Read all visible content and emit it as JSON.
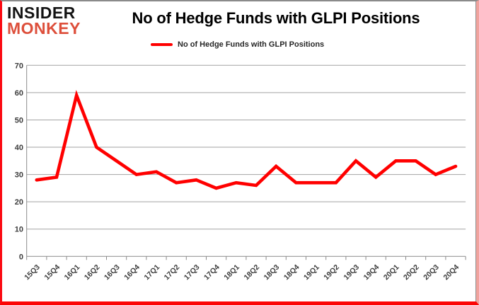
{
  "brand": {
    "line1": "INSIDER",
    "line2": "MONKEY"
  },
  "title": "No of Hedge Funds with GLPI Positions",
  "legend": {
    "label": "No of Hedge Funds with GLPI Positions"
  },
  "colors": {
    "series": "#ff0000",
    "brand_black": "#131313",
    "brand_red": "#dd4f3b",
    "grid": "#a3a3a3",
    "axis": "#8a8a8a",
    "tick_text": "#3c3c3c"
  },
  "chart_data": {
    "type": "line",
    "title": "No of Hedge Funds with GLPI Positions",
    "categories": [
      "15Q3",
      "15Q4",
      "16Q1",
      "16Q2",
      "16Q3",
      "16Q4",
      "17Q1",
      "17Q2",
      "17Q3",
      "17Q4",
      "18Q1",
      "18Q2",
      "18Q3",
      "18Q4",
      "19Q1",
      "19Q2",
      "19Q3",
      "19Q4",
      "20Q1",
      "20Q2",
      "20Q3",
      "20Q4"
    ],
    "series": [
      {
        "name": "No of Hedge Funds with GLPI Positions",
        "color": "#ff0000",
        "values": [
          28,
          29,
          59,
          40,
          35,
          30,
          31,
          27,
          28,
          25,
          27,
          26,
          33,
          27,
          27,
          27,
          35,
          29,
          35,
          35,
          30,
          33
        ]
      }
    ],
    "xlabel": "",
    "ylabel": "",
    "ylim": [
      0,
      70
    ],
    "ytick_interval": 10,
    "grid": "horizontal-only",
    "legend_position": "top-center",
    "x_tick_rotation": -45
  }
}
